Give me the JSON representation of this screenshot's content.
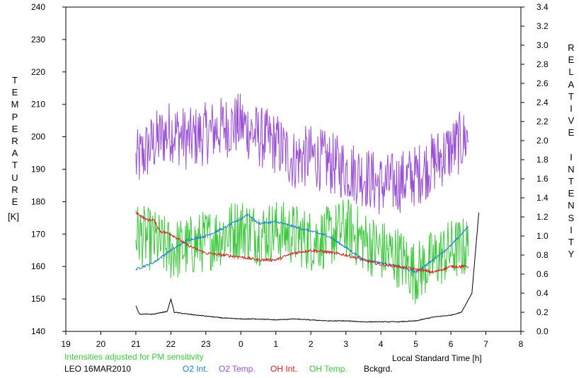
{
  "chart_data": {
    "type": "line",
    "x_axis": {
      "label": "Local Standard Time [h]",
      "ticks": [
        "19",
        "20",
        "21",
        "22",
        "23",
        "0",
        "1",
        "2",
        "3",
        "4",
        "5",
        "6",
        "7",
        "8"
      ],
      "range": [
        19,
        32
      ]
    },
    "y_left": {
      "label": "TEMPERATURE",
      "unit": "[K]",
      "range": [
        140,
        240
      ],
      "ticks": [
        140,
        150,
        160,
        170,
        180,
        190,
        200,
        210,
        220,
        230,
        240
      ]
    },
    "y_right": {
      "label": "RELATIVE INTENSITY",
      "range": [
        0.0,
        3.4
      ],
      "ticks": [
        "0.0",
        "0.2",
        "0.4",
        "0.6",
        "0.8",
        "1.0",
        "1.2",
        "1.4",
        "1.6",
        "1.8",
        "2.0",
        "2.2",
        "2.4",
        "2.6",
        "2.8",
        "3.0",
        "3.2",
        "3.4"
      ]
    },
    "note": "Intensities adjusted for PM sensitivity",
    "station": "LEO 16MAR2010",
    "legend": [
      {
        "name": "O2 Int.",
        "color": "#1a7fd4"
      },
      {
        "name": "O2 Temp.",
        "color": "#9a4fd4"
      },
      {
        "name": "OH Int.",
        "color": "#d42020"
      },
      {
        "name": "OH Temp.",
        "color": "#3ec83e"
      },
      {
        "name": "Bckgrd.",
        "color": "#000000"
      }
    ],
    "series": [
      {
        "name": "O2 Temp.",
        "axis": "left",
        "color": "#9a4fd4",
        "noise": 7,
        "x": [
          21.0,
          21.5,
          22.0,
          22.5,
          23.0,
          23.5,
          24.0,
          24.5,
          25.0,
          25.5,
          26.0,
          26.5,
          27.0,
          27.5,
          28.0,
          28.5,
          29.0,
          29.5,
          30.0,
          30.5
        ],
        "y": [
          192,
          198,
          202,
          199,
          201,
          203,
          204,
          200,
          198,
          193,
          194,
          192,
          190,
          188,
          185,
          186,
          188,
          192,
          196,
          200
        ]
      },
      {
        "name": "OH Temp.",
        "axis": "left",
        "color": "#3ec83e",
        "noise": 7,
        "x": [
          21.0,
          21.5,
          22.0,
          22.5,
          23.0,
          23.5,
          24.0,
          24.5,
          25.0,
          25.5,
          26.0,
          26.5,
          27.0,
          27.5,
          28.0,
          28.5,
          29.0,
          29.5,
          30.0,
          30.5
        ],
        "y": [
          170,
          168,
          165,
          166,
          168,
          170,
          172,
          170,
          171,
          170,
          168,
          169,
          172,
          168,
          165,
          163,
          158,
          162,
          165,
          166
        ]
      },
      {
        "name": "O2 Int.",
        "axis": "right",
        "color": "#1a7fd4",
        "noise": 0.012,
        "x": [
          21.0,
          21.5,
          22.0,
          22.5,
          23.0,
          23.5,
          24.0,
          24.2,
          24.5,
          25.0,
          25.5,
          26.0,
          26.5,
          27.0,
          27.5,
          28.0,
          28.5,
          29.0,
          29.5,
          30.0,
          30.5
        ],
        "y": [
          0.65,
          0.72,
          0.85,
          0.96,
          1.0,
          1.08,
          1.18,
          1.23,
          1.13,
          1.15,
          1.1,
          1.05,
          1.0,
          0.88,
          0.75,
          0.72,
          0.68,
          0.62,
          0.75,
          0.9,
          1.1
        ]
      },
      {
        "name": "OH Int.",
        "axis": "right",
        "color": "#d42020",
        "noise": 0.015,
        "x": [
          21.0,
          21.3,
          21.5,
          21.7,
          22.0,
          22.5,
          23.0,
          23.5,
          24.0,
          24.5,
          25.0,
          25.5,
          26.0,
          26.5,
          27.0,
          27.5,
          28.0,
          28.5,
          29.0,
          29.5,
          30.0,
          30.5
        ],
        "y": [
          1.25,
          1.17,
          1.17,
          1.05,
          1.02,
          0.9,
          0.82,
          0.8,
          0.78,
          0.75,
          0.75,
          0.82,
          0.85,
          0.83,
          0.8,
          0.75,
          0.7,
          0.68,
          0.65,
          0.62,
          0.68,
          0.68
        ]
      },
      {
        "name": "Bckgrd.",
        "axis": "right",
        "color": "#000000",
        "noise": 0.004,
        "x": [
          21.0,
          21.1,
          21.5,
          21.9,
          22.0,
          22.1,
          22.5,
          23.0,
          23.5,
          24.0,
          24.5,
          25.0,
          25.5,
          26.0,
          26.5,
          27.0,
          27.5,
          28.0,
          28.5,
          29.0,
          29.5,
          30.0,
          30.3,
          30.6,
          30.8
        ],
        "y": [
          0.27,
          0.18,
          0.18,
          0.21,
          0.34,
          0.2,
          0.18,
          0.16,
          0.14,
          0.13,
          0.13,
          0.12,
          0.13,
          0.12,
          0.11,
          0.11,
          0.1,
          0.1,
          0.1,
          0.11,
          0.15,
          0.17,
          0.2,
          0.4,
          1.25
        ]
      }
    ]
  }
}
